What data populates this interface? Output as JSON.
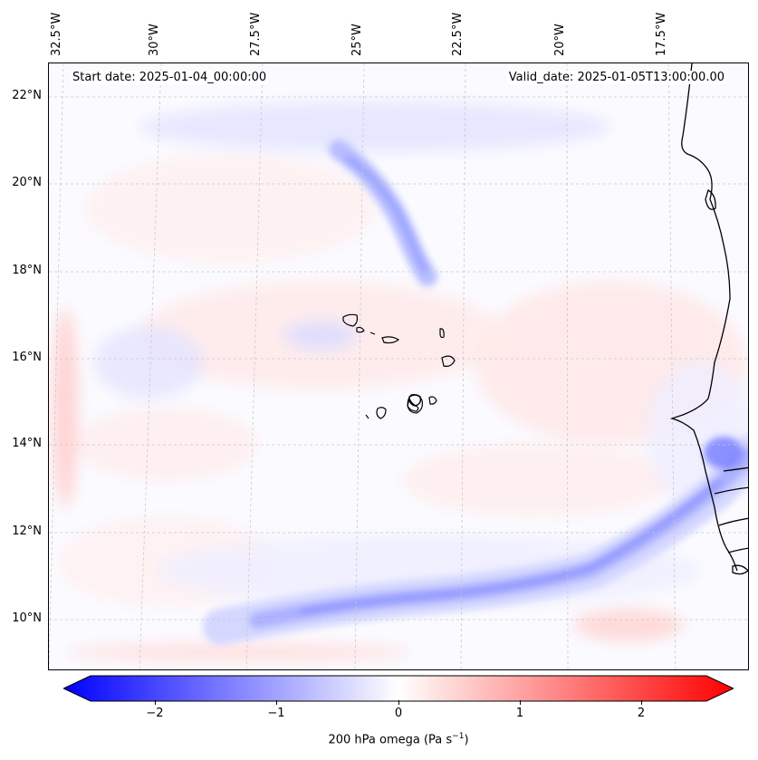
{
  "map": {
    "start_date": "Start date: 2025-01-04_00:00:00",
    "valid_date": "Valid_date: 2025-01-05T13:00:00.00",
    "lon_labels": [
      "32.5°W",
      "30°W",
      "27.5°W",
      "25°W",
      "22.5°W",
      "20°W",
      "17.5°W"
    ],
    "lat_labels": [
      "22°N",
      "20°N",
      "18°N",
      "16°N",
      "14°N",
      "12°N",
      "10°N"
    ],
    "variable": "200 hPa omega",
    "colors": {
      "negative": "#0000ff",
      "neutral": "#ffffff",
      "positive": "#ff0000",
      "coast": "#000000",
      "grid": "#bbbbbb"
    }
  },
  "colorbar": {
    "ticks": [
      "−2",
      "−1",
      "0",
      "1",
      "2"
    ],
    "label": "200 hPa omega (Pa s",
    "label_sup": "−1",
    "label_end": ")",
    "range": [
      -2.6,
      2.6
    ]
  }
}
